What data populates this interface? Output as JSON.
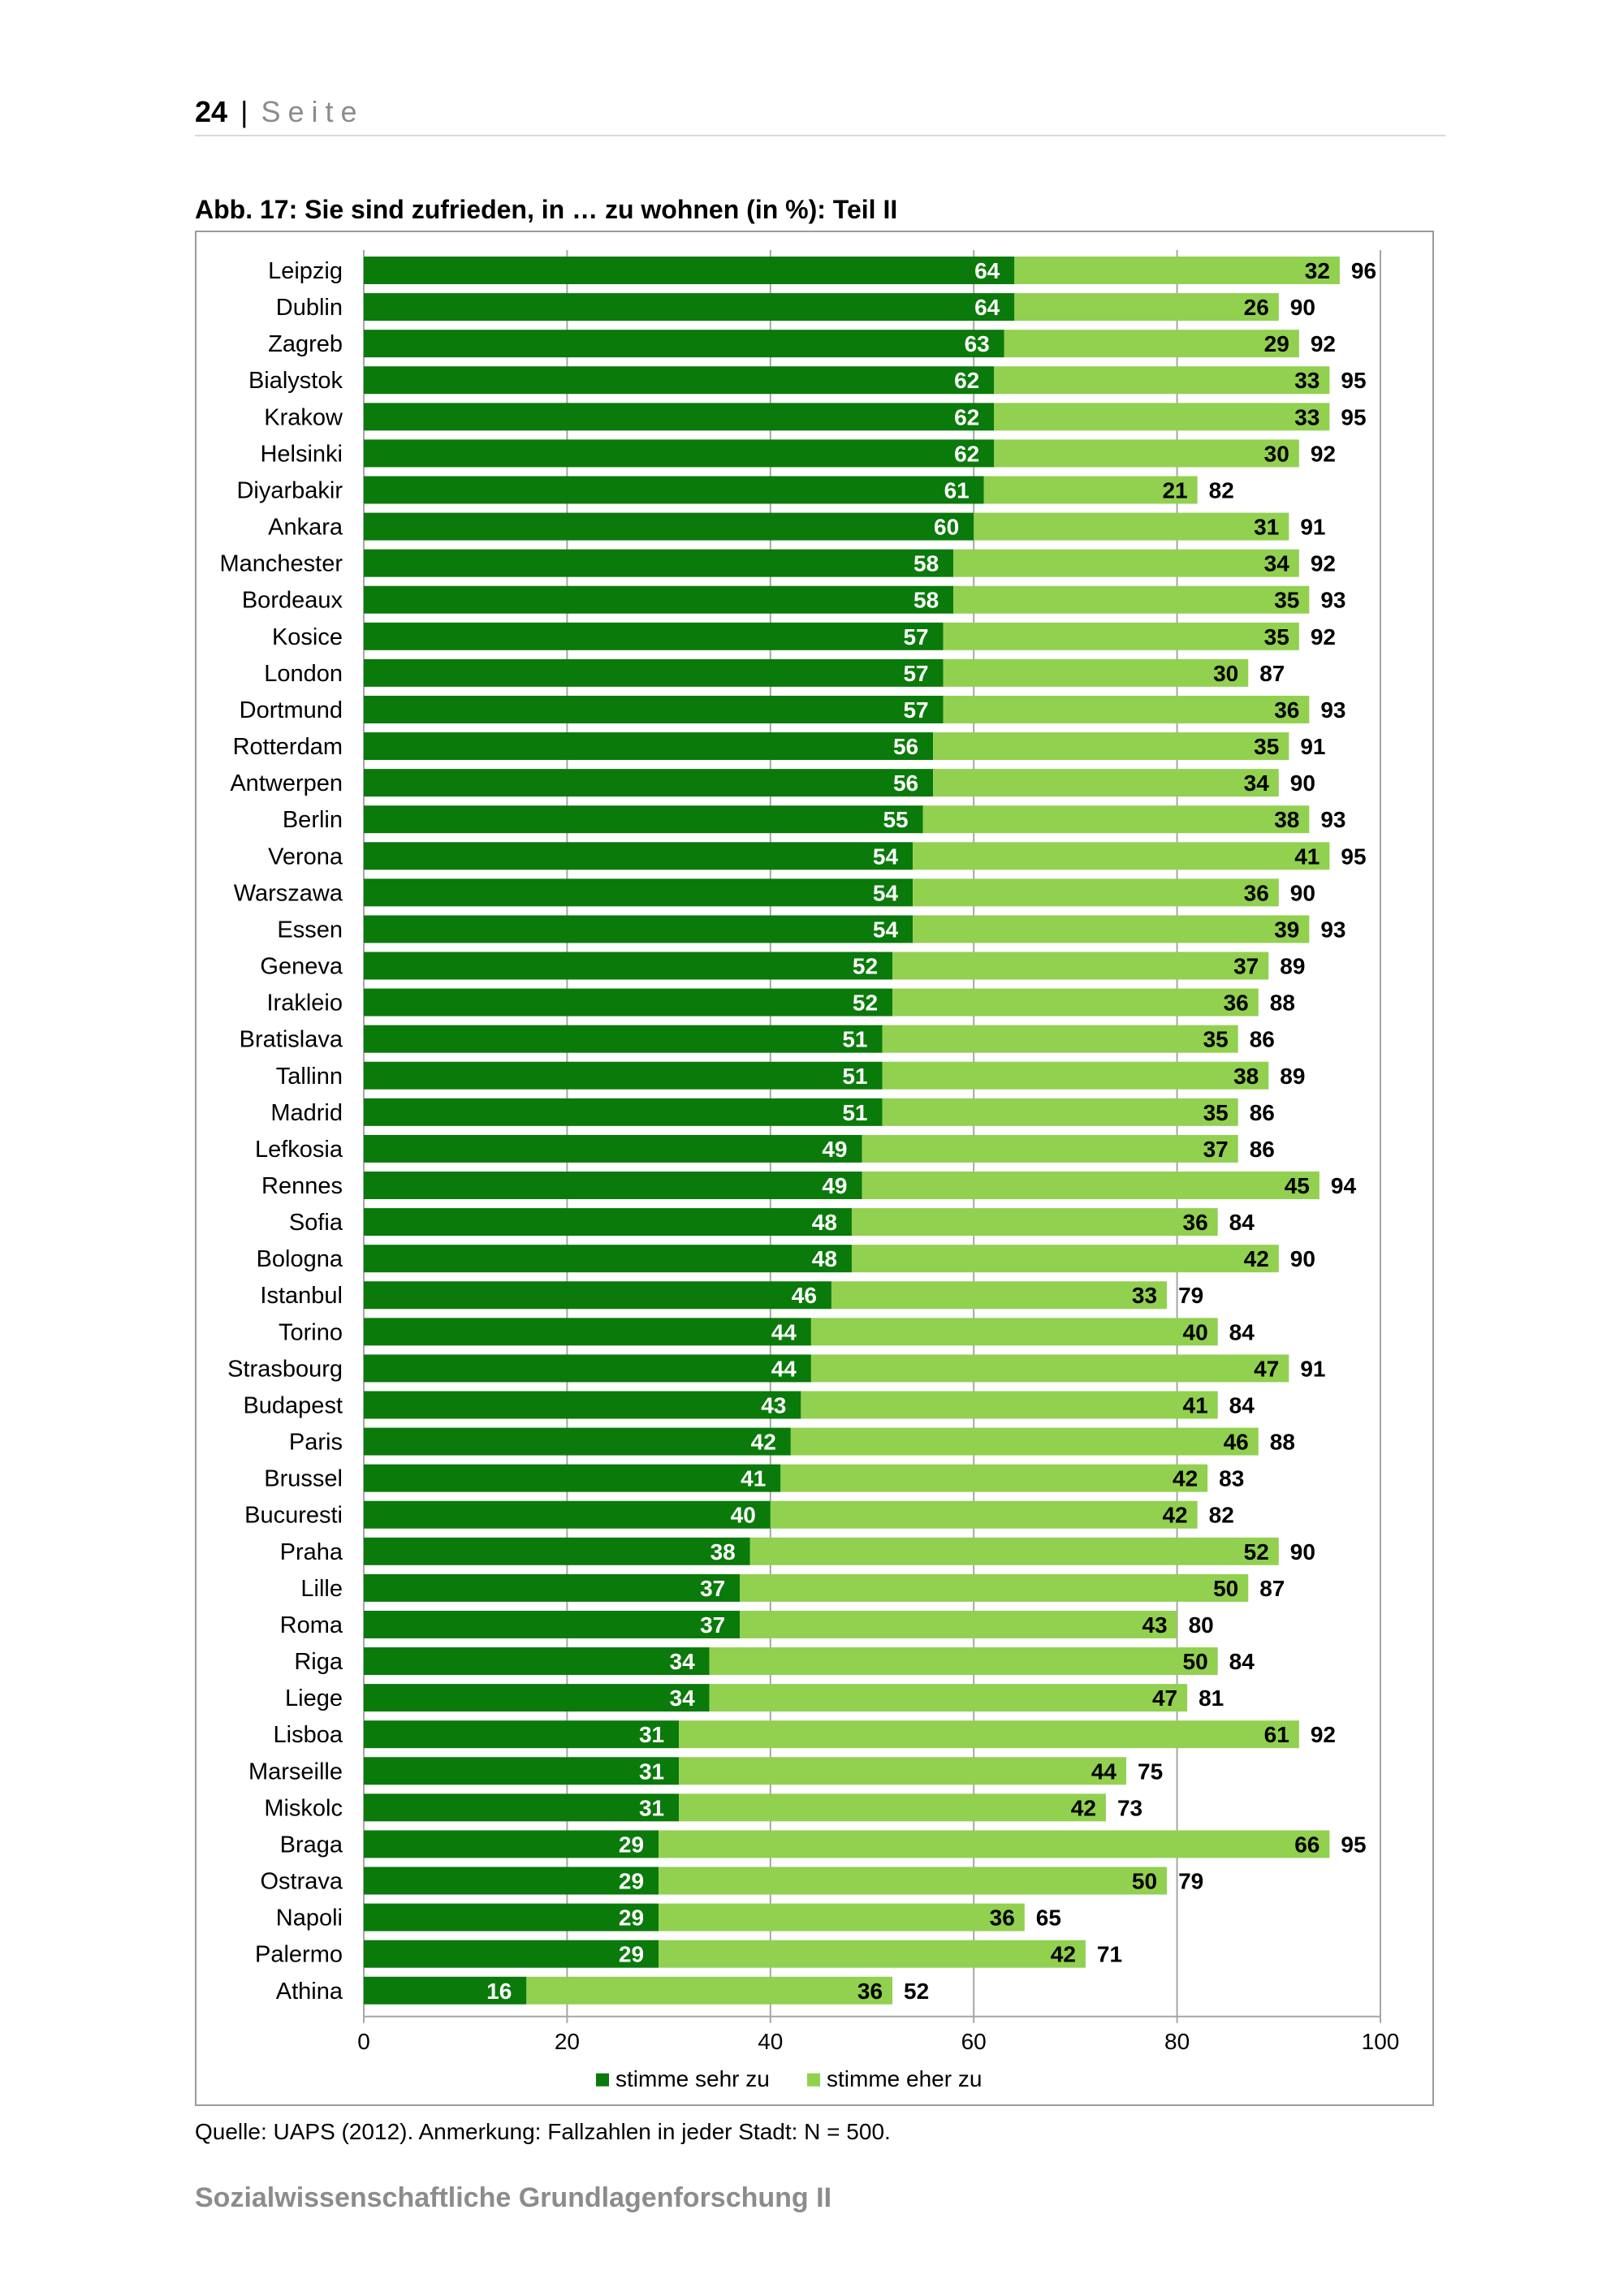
{
  "header": {
    "page_number": "24",
    "separator": "|",
    "page_word": "Seite"
  },
  "figure_title": "Abb. 17: Sie sind zufrieden, in … zu wohnen (in %): Teil II",
  "source_note": "Quelle: UAPS (2012). Anmerkung:  Fallzahlen in jeder Stadt: N = 500.",
  "footer": "Sozialwissenschaftliche Grundlagenforschung II",
  "colors": {
    "dark_green": "#0a7a0a",
    "light_green": "#92d050",
    "grid": "#a6a6a6"
  },
  "chart_data": {
    "type": "bar",
    "orientation": "horizontal",
    "stacked": true,
    "title": "Abb. 17: Sie sind zufrieden, in … zu wohnen (in %): Teil II",
    "xlabel": "",
    "ylabel": "",
    "xlim": [
      0,
      100
    ],
    "x_ticks": [
      "0",
      "20",
      "40",
      "60",
      "80",
      "100"
    ],
    "grid": "vertical",
    "legend_position": "bottom",
    "categories": [
      "Leipzig",
      "Dublin",
      "Zagreb",
      "Bialystok",
      "Krakow",
      "Helsinki",
      "Diyarbakir",
      "Ankara",
      "Manchester",
      "Bordeaux",
      "Kosice",
      "London",
      "Dortmund",
      "Rotterdam",
      "Antwerpen",
      "Berlin",
      "Verona",
      "Warszawa",
      "Essen",
      "Geneva",
      "Irakleio",
      "Bratislava",
      "Tallinn",
      "Madrid",
      "Lefkosia",
      "Rennes",
      "Sofia",
      "Bologna",
      "Istanbul",
      "Torino",
      "Strasbourg",
      "Budapest",
      "Paris",
      "Brussel",
      "Bucuresti",
      "Praha",
      "Lille",
      "Roma",
      "Riga",
      "Liege",
      "Lisboa",
      "Marseille",
      "Miskolc",
      "Braga",
      "Ostrava",
      "Napoli",
      "Palermo",
      "Athina"
    ],
    "series": [
      {
        "name": "stimme sehr zu",
        "color": "#0a7a0a",
        "values": [
          64,
          64,
          63,
          62,
          62,
          62,
          61,
          60,
          58,
          58,
          57,
          57,
          57,
          56,
          56,
          55,
          54,
          54,
          54,
          52,
          52,
          51,
          51,
          51,
          49,
          49,
          48,
          48,
          46,
          44,
          44,
          43,
          42,
          41,
          40,
          38,
          37,
          37,
          34,
          34,
          31,
          31,
          31,
          29,
          29,
          29,
          29,
          16
        ]
      },
      {
        "name": "stimme eher zu",
        "color": "#92d050",
        "values": [
          32,
          26,
          29,
          33,
          33,
          30,
          21,
          31,
          34,
          35,
          35,
          30,
          36,
          35,
          34,
          38,
          41,
          36,
          39,
          37,
          36,
          35,
          38,
          35,
          37,
          45,
          36,
          42,
          33,
          40,
          47,
          41,
          46,
          42,
          42,
          52,
          50,
          43,
          50,
          47,
          61,
          44,
          42,
          66,
          50,
          36,
          42,
          36
        ]
      }
    ],
    "totals": [
      96,
      90,
      92,
      95,
      95,
      92,
      82,
      91,
      92,
      93,
      92,
      87,
      93,
      91,
      90,
      93,
      95,
      90,
      93,
      89,
      88,
      86,
      89,
      86,
      86,
      94,
      84,
      90,
      79,
      84,
      91,
      84,
      88,
      83,
      82,
      90,
      87,
      80,
      84,
      81,
      92,
      75,
      73,
      95,
      79,
      65,
      71,
      52
    ]
  }
}
